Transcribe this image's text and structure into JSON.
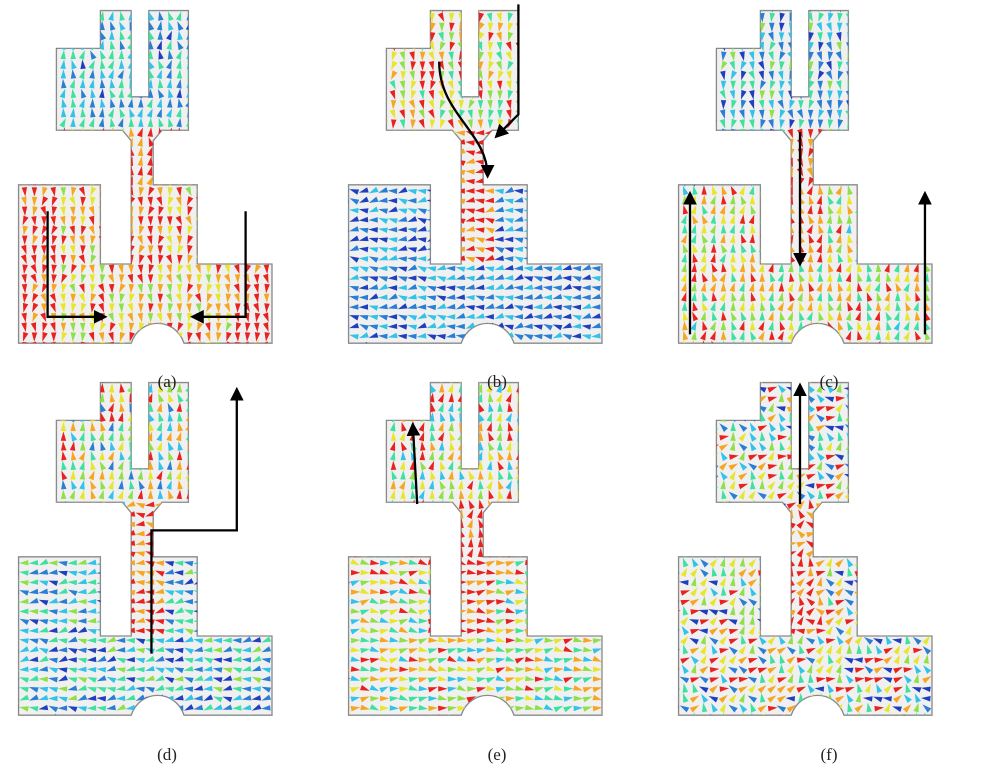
{
  "panels": [
    {
      "caption": "(a)",
      "hue": "r",
      "annotation": "side-inward"
    },
    {
      "caption": "(b)",
      "hue": "b",
      "annotation": "top-converge"
    },
    {
      "caption": "(c)",
      "hue": "rb",
      "annotation": "side-up-center-down"
    },
    {
      "caption": "(d)",
      "hue": "bt",
      "annotation": "right-up-path"
    },
    {
      "caption": "(e)",
      "hue": "g",
      "annotation": "left-up"
    },
    {
      "caption": "(f)",
      "hue": "mx",
      "annotation": "center-up"
    }
  ],
  "colors": {
    "outline": "#8a8a8a",
    "fill": "#f0f0f0",
    "annotation_arrow": "#000000",
    "vector_palette": [
      "#1f3fbf",
      "#2a7fd4",
      "#33c2e8",
      "#3fe0a0",
      "#8fe04a",
      "#e6e62e",
      "#f5a623",
      "#e8231f"
    ]
  },
  "glyph": "current-vector-arrow"
}
